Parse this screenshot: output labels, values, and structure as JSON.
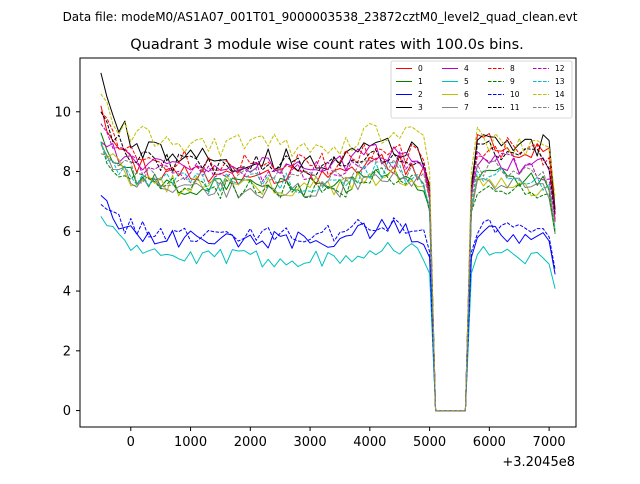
{
  "chart_data": {
    "type": "line",
    "suptitle": "Data file: modeM0/AS1A07_001T01_9000003538_23872cztM0_level2_quad_clean.evt",
    "title": "Quadrant 3 module wise count rates with 100.0s bins.",
    "xlabel": "",
    "ylabel": "",
    "x_offset_label": "+3.2045e8",
    "xlim": [
      -850,
      7450
    ],
    "ylim": [
      -0.55,
      11.8
    ],
    "x_ticks": [
      0,
      1000,
      2000,
      3000,
      4000,
      5000,
      6000,
      7000
    ],
    "x_tick_labels": [
      "0",
      "1000",
      "2000",
      "3000",
      "4000",
      "5000",
      "6000",
      "7000"
    ],
    "y_ticks": [
      0,
      2,
      4,
      6,
      8,
      10
    ],
    "y_tick_labels": [
      "0",
      "2",
      "4",
      "6",
      "8",
      "10"
    ],
    "grid": false,
    "legend_position": "top-right",
    "legend_columns": 4,
    "x_start": -500,
    "bin_width": 100,
    "gap": {
      "start": 5100,
      "end": 5600,
      "value": 0
    },
    "series": [
      {
        "name": "0",
        "color": "#ff0000",
        "dashed": false,
        "level": 7.9,
        "start": 10.2,
        "after": 9.0,
        "noise": 0.35
      },
      {
        "name": "1",
        "color": "#008000",
        "dashed": false,
        "level": 7.5,
        "start": 9.3,
        "after": 8.0,
        "noise": 0.3
      },
      {
        "name": "2",
        "color": "#0000ff",
        "dashed": false,
        "level": 5.7,
        "start": 7.2,
        "after": 6.0,
        "noise": 0.3
      },
      {
        "name": "3",
        "color": "#000000",
        "dashed": false,
        "level": 8.4,
        "start": 11.3,
        "after": 9.2,
        "noise": 0.4
      },
      {
        "name": "4",
        "color": "#bf00bf",
        "dashed": false,
        "level": 8.2,
        "start": 9.0,
        "after": 8.5,
        "noise": 0.35
      },
      {
        "name": "5",
        "color": "#00bfbf",
        "dashed": false,
        "level": 5.1,
        "start": 6.5,
        "after": 5.4,
        "noise": 0.3
      },
      {
        "name": "6",
        "color": "#bfbf00",
        "dashed": false,
        "level": 7.5,
        "start": 9.0,
        "after": 7.6,
        "noise": 0.35
      },
      {
        "name": "7",
        "color": "#808080",
        "dashed": false,
        "level": 7.4,
        "start": 8.9,
        "after": 7.7,
        "noise": 0.3
      },
      {
        "name": "8",
        "color": "#ff0000",
        "dashed": true,
        "level": 8.3,
        "start": 10.0,
        "after": 8.9,
        "noise": 0.4
      },
      {
        "name": "9",
        "color": "#008000",
        "dashed": true,
        "level": 7.4,
        "start": 9.0,
        "after": 7.5,
        "noise": 0.35
      },
      {
        "name": "10",
        "color": "#0000ff",
        "dashed": true,
        "level": 5.9,
        "start": 6.9,
        "after": 6.2,
        "noise": 0.3
      },
      {
        "name": "11",
        "color": "#000000",
        "dashed": true,
        "level": 8.2,
        "start": 10.0,
        "after": 8.8,
        "noise": 0.35
      },
      {
        "name": "12",
        "color": "#bf00bf",
        "dashed": true,
        "level": 8.0,
        "start": 9.6,
        "after": 8.4,
        "noise": 0.35
      },
      {
        "name": "13",
        "color": "#00bfbf",
        "dashed": true,
        "level": 7.6,
        "start": 9.0,
        "after": 8.0,
        "noise": 0.35
      },
      {
        "name": "14",
        "color": "#bfbf00",
        "dashed": true,
        "level": 8.9,
        "start": 10.6,
        "after": 9.1,
        "noise": 0.4
      },
      {
        "name": "15",
        "color": "#808080",
        "dashed": true,
        "level": 7.8,
        "start": 8.6,
        "after": 8.1,
        "noise": 0.35
      }
    ]
  }
}
